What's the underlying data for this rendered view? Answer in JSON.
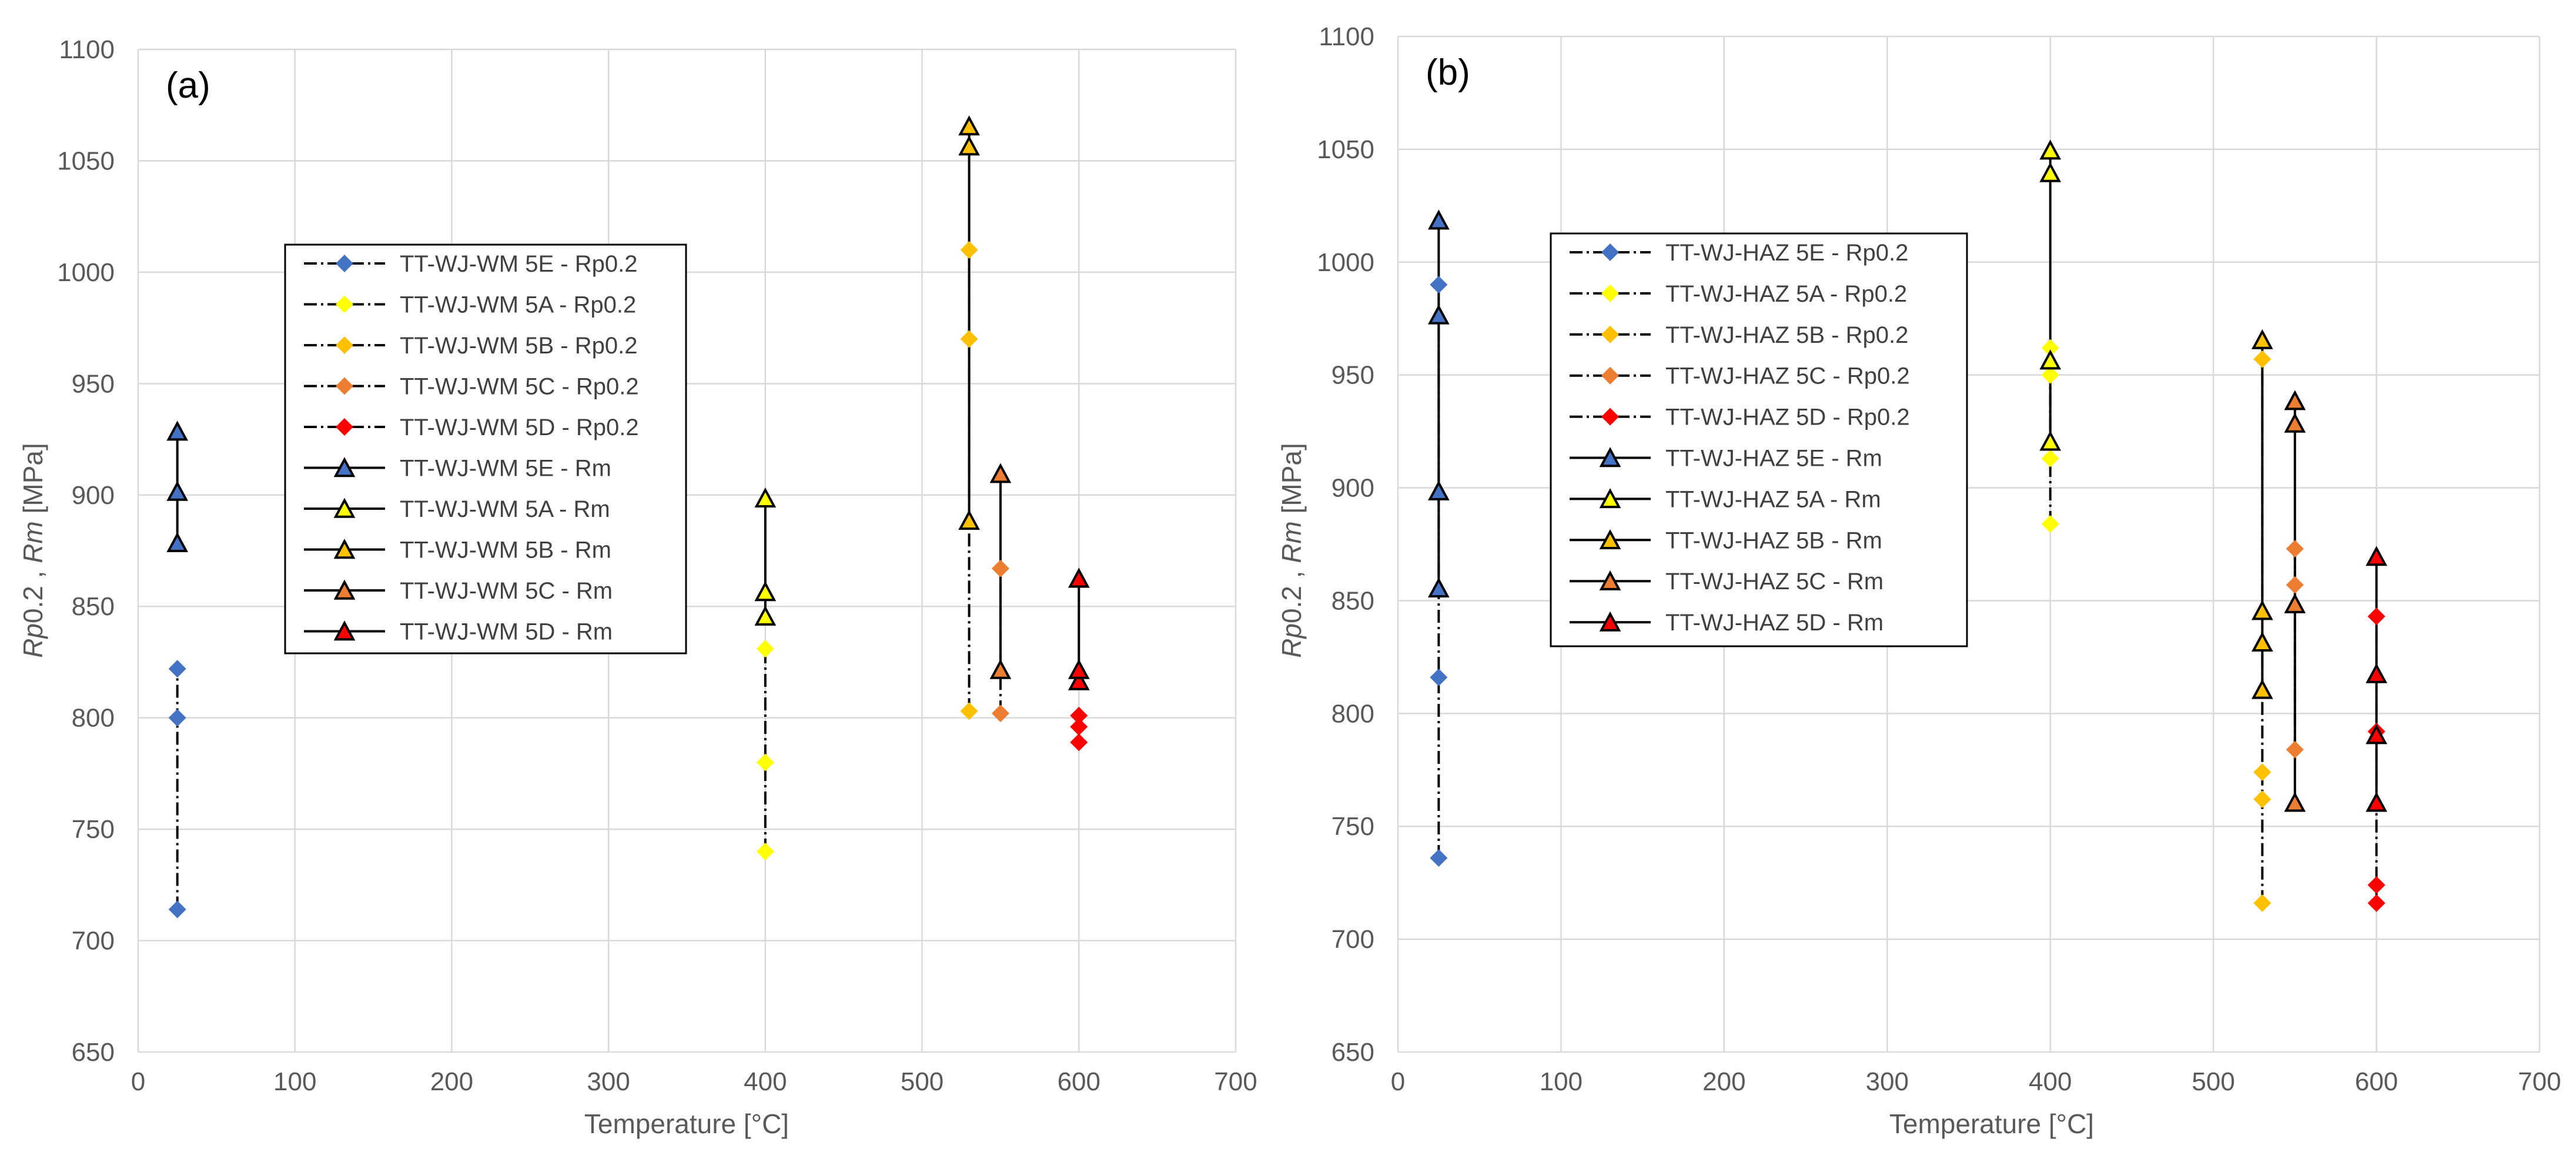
{
  "chart_data": [
    {
      "type": "scatter",
      "panel_label": "(a)",
      "xlabel": "Temperature [°C]",
      "ylabel_parts": [
        "Rp",
        "0.2 , ",
        "Rm",
        " [MPa]"
      ],
      "xlim": [
        0,
        700
      ],
      "ylim": [
        650,
        1100
      ],
      "xticks": [
        "0",
        "100",
        "200",
        "300",
        "400",
        "500",
        "600",
        "700"
      ],
      "yticks": [
        "650",
        "700",
        "750",
        "800",
        "850",
        "900",
        "950",
        "1000",
        "1050",
        "1100"
      ],
      "grid": true,
      "legend_position": "center-left",
      "series": [
        {
          "name": "TT-WJ-WM 5E - Rp0.2",
          "kind": "rp",
          "color": "#4472C4",
          "x": 25,
          "values": [
            714,
            800,
            822
          ]
        },
        {
          "name": "TT-WJ-WM 5A - Rp0.2",
          "kind": "rp",
          "color": "#FFFF00",
          "x": 400,
          "values": [
            740,
            780,
            831
          ]
        },
        {
          "name": "TT-WJ-WM 5B - Rp0.2",
          "kind": "rp",
          "color": "#FFC000",
          "x": 530,
          "values": [
            803,
            970,
            1010
          ]
        },
        {
          "name": "TT-WJ-WM 5C - Rp0.2",
          "kind": "rp",
          "color": "#ED7D31",
          "x": 550,
          "values": [
            802,
            867
          ]
        },
        {
          "name": "TT-WJ-WM 5D - Rp0.2",
          "kind": "rp",
          "color": "#FF0000",
          "x": 600,
          "values": [
            789,
            796,
            801
          ]
        },
        {
          "name": "TT-WJ-WM 5E - Rm",
          "kind": "rm",
          "color": "#4472C4",
          "x": 25,
          "values": [
            878,
            901,
            928
          ]
        },
        {
          "name": "TT-WJ-WM 5A  - Rm",
          "kind": "rm",
          "color": "#FFFF00",
          "x": 400,
          "values": [
            845,
            856,
            898
          ]
        },
        {
          "name": "TT-WJ-WM 5B  - Rm",
          "kind": "rm",
          "color": "#FFC000",
          "x": 530,
          "values": [
            888,
            1056,
            1065
          ]
        },
        {
          "name": "TT-WJ-WM 5C  - Rm",
          "kind": "rm",
          "color": "#ED7D31",
          "x": 550,
          "values": [
            821,
            909
          ]
        },
        {
          "name": "TT-WJ-WM 5D  - Rm",
          "kind": "rm",
          "color": "#FF0000",
          "x": 600,
          "values": [
            816,
            821,
            862
          ]
        }
      ]
    },
    {
      "type": "scatter",
      "panel_label": "(b)",
      "xlabel": "Temperature [°C]",
      "ylabel_parts": [
        "Rp",
        "0.2 , ",
        "Rm",
        " [MPa]"
      ],
      "xlim": [
        0,
        700
      ],
      "ylim": [
        650,
        1100
      ],
      "xticks": [
        "0",
        "100",
        "200",
        "300",
        "400",
        "500",
        "600",
        "700"
      ],
      "yticks": [
        "650",
        "700",
        "750",
        "800",
        "850",
        "900",
        "950",
        "1000",
        "1050",
        "1100"
      ],
      "grid": true,
      "legend_position": "center-left",
      "series": [
        {
          "name": "TT-WJ-HAZ 5E - Rp0.2",
          "kind": "rp",
          "color": "#4472C4",
          "x": 25,
          "values": [
            736,
            816,
            990
          ]
        },
        {
          "name": "TT-WJ-HAZ 5A - Rp0.2",
          "kind": "rp",
          "color": "#FFFF00",
          "x": 400,
          "values": [
            884,
            913,
            950,
            962
          ]
        },
        {
          "name": "TT-WJ-HAZ 5B - Rp0.2",
          "kind": "rp",
          "color": "#FFC000",
          "x": 530,
          "values": [
            716,
            762,
            774,
            957
          ]
        },
        {
          "name": "TT-WJ-HAZ 5C - Rp0.2",
          "kind": "rp",
          "color": "#ED7D31",
          "x": 550,
          "values": [
            784,
            857,
            873
          ]
        },
        {
          "name": "TT-WJ-HAZ 5D - Rp0.2",
          "kind": "rp",
          "color": "#FF0000",
          "x": 600,
          "values": [
            716,
            724,
            792,
            843
          ]
        },
        {
          "name": "TT-WJ-HAZ 5E - Rm",
          "kind": "rm",
          "color": "#4472C4",
          "x": 25,
          "values": [
            855,
            898,
            976,
            1018
          ]
        },
        {
          "name": "TT-WJ-HAZ 5A  - Rm",
          "kind": "rm",
          "color": "#FFFF00",
          "x": 400,
          "values": [
            920,
            956,
            1039,
            1049
          ]
        },
        {
          "name": "TT-WJ-HAZ 5B  - Rm",
          "kind": "rm",
          "color": "#FFC000",
          "x": 530,
          "values": [
            810,
            831,
            845,
            965
          ]
        },
        {
          "name": "TT-WJ-HAZ 5C  - Rm",
          "kind": "rm",
          "color": "#ED7D31",
          "x": 550,
          "values": [
            760,
            848,
            928,
            938
          ]
        },
        {
          "name": "TT-WJ-HAZ 5D  - Rm",
          "kind": "rm",
          "color": "#FF0000",
          "x": 600,
          "values": [
            760,
            790,
            817,
            869
          ]
        }
      ]
    }
  ]
}
